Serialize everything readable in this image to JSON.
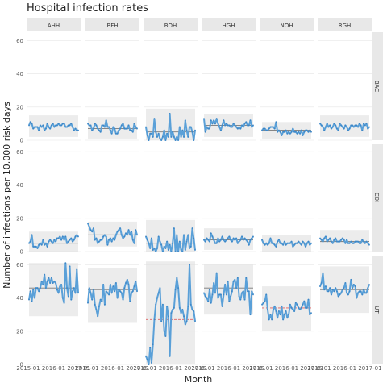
{
  "chart_data": {
    "type": "line",
    "title": "Hospital infection rates",
    "xlabel": "Month",
    "ylabel": "Number of infections per 10,000 risk days",
    "ylim": [
      0,
      65
    ],
    "yticks": [
      0,
      20,
      40,
      60
    ],
    "grid": true,
    "legend": "none",
    "hospitals": [
      "AHH",
      "BFH",
      "BOH",
      "HGH",
      "NOH",
      "RGH"
    ],
    "infections": [
      "BAC",
      "CDI",
      "UTI"
    ],
    "xtick_labels": {
      "AHH": "2015-01 2016-01 2017-01",
      "BFH": "2015-01 2016-01 2017-01",
      "BOH": "2015-01 2016-01 2017-01",
      "HGH": "2015-01 2016-01 2017-01",
      "NOH": "2015-01 2016-01 2017-01",
      "RGH": "2015-01 2016-01 2017-01"
    },
    "panels": {
      "BAC": {
        "AHH": {
          "mean": 8,
          "lcl": 2,
          "ucl": 15,
          "values": [
            9,
            11,
            10,
            7,
            8,
            8,
            8,
            6,
            9,
            8,
            9,
            6,
            7,
            10,
            8,
            7,
            9,
            10,
            8,
            9,
            9,
            10,
            9,
            9,
            10,
            10,
            8,
            8,
            9,
            9,
            10,
            8,
            6,
            7,
            6,
            6
          ]
        },
        "BFH": {
          "mean": 7,
          "lcl": 1,
          "ucl": 14,
          "values": [
            10,
            9,
            9,
            6,
            7,
            10,
            9,
            7,
            6,
            5,
            9,
            9,
            8,
            12,
            8,
            8,
            6,
            4,
            8,
            7,
            4,
            4,
            6,
            7,
            9,
            10,
            7,
            7,
            7,
            9,
            6,
            6,
            5,
            10,
            8,
            7
          ]
        },
        "BOH": {
          "mean": 5,
          "lcl": 0,
          "ucl": 19,
          "values": [
            8,
            3,
            0,
            4,
            4,
            2,
            13,
            5,
            2,
            4,
            1,
            0,
            2,
            6,
            0,
            4,
            2,
            16,
            2,
            5,
            2,
            0,
            2,
            0,
            8,
            2,
            6,
            2,
            12,
            6,
            2,
            8,
            8,
            5,
            0,
            6
          ]
        },
        "HGH": {
          "mean": 9,
          "lcl": 2,
          "ucl": 16,
          "values": [
            13,
            5,
            8,
            7,
            7,
            12,
            10,
            12,
            10,
            13,
            10,
            8,
            6,
            9,
            12,
            9,
            10,
            9,
            9,
            8,
            8,
            10,
            9,
            8,
            7,
            8,
            7,
            9,
            8,
            10,
            11,
            9,
            9,
            12,
            8,
            9
          ]
        },
        "NOH": {
          "mean": 6,
          "lcl": 1,
          "ucl": 11,
          "values": [
            6,
            7,
            7,
            6,
            6,
            7,
            8,
            8,
            8,
            7,
            11,
            5,
            6,
            5,
            3,
            5,
            5,
            6,
            4,
            5,
            4,
            5,
            7,
            5,
            5,
            4,
            5,
            4,
            6,
            3,
            5,
            6,
            6,
            5,
            6,
            5
          ]
        },
        "RGH": {
          "mean": 8,
          "lcl": 2,
          "ucl": 15,
          "values": [
            10,
            9,
            8,
            6,
            8,
            10,
            8,
            9,
            7,
            8,
            10,
            9,
            7,
            6,
            10,
            9,
            8,
            7,
            9,
            8,
            6,
            7,
            9,
            9,
            8,
            9,
            9,
            8,
            10,
            9,
            6,
            10,
            9,
            10,
            7,
            8
          ]
        }
      },
      "CDI": {
        "AHH": {
          "mean": 5,
          "lcl": 0,
          "ucl": 12,
          "values": [
            5,
            6,
            10,
            3,
            3,
            3,
            2,
            4,
            5,
            4,
            7,
            4,
            5,
            3,
            6,
            7,
            6,
            5,
            7,
            6,
            8,
            8,
            9,
            7,
            9,
            7,
            9,
            5,
            6,
            7,
            8,
            6,
            7,
            9,
            10,
            9
          ]
        },
        "BFH": {
          "mean": 10,
          "lcl": 3,
          "ucl": 18,
          "values": [
            17,
            15,
            13,
            12,
            14,
            7,
            8,
            5,
            6,
            7,
            7,
            9,
            10,
            9,
            4,
            7,
            8,
            6,
            8,
            7,
            10,
            12,
            13,
            14,
            10,
            8,
            9,
            11,
            10,
            13,
            10,
            12,
            7,
            5,
            13,
            10
          ]
        },
        "BOH": {
          "mean": 5,
          "lcl": 0,
          "ucl": 19,
          "values": [
            9,
            7,
            5,
            2,
            8,
            1,
            2,
            0,
            2,
            9,
            6,
            4,
            0,
            3,
            2,
            6,
            1,
            4,
            0,
            5,
            14,
            0,
            10,
            0,
            6,
            1,
            0,
            10,
            1,
            6,
            10,
            2,
            3,
            14,
            8,
            1
          ]
        },
        "HGH": {
          "mean": 7,
          "lcl": 1,
          "ucl": 14,
          "values": [
            7,
            6,
            8,
            7,
            6,
            11,
            9,
            7,
            5,
            5,
            8,
            6,
            7,
            9,
            7,
            6,
            7,
            8,
            9,
            7,
            6,
            8,
            7,
            8,
            5,
            6,
            7,
            9,
            7,
            8,
            7,
            6,
            4,
            7,
            8,
            9
          ]
        },
        "NOH": {
          "mean": 5,
          "lcl": 0,
          "ucl": 10,
          "values": [
            7,
            5,
            4,
            5,
            4,
            5,
            8,
            5,
            5,
            4,
            3,
            6,
            7,
            5,
            5,
            4,
            6,
            4,
            5,
            5,
            5,
            6,
            3,
            4,
            5,
            5,
            6,
            5,
            4,
            6,
            5,
            3,
            5,
            6,
            4,
            5
          ]
        },
        "RGH": {
          "mean": 6,
          "lcl": 1,
          "ucl": 13,
          "values": [
            8,
            7,
            6,
            8,
            9,
            6,
            7,
            8,
            6,
            5,
            7,
            8,
            6,
            6,
            6,
            7,
            8,
            7,
            5,
            7,
            5,
            5,
            6,
            5,
            5,
            6,
            6,
            6,
            5,
            5,
            7,
            6,
            5,
            6,
            5,
            4
          ]
        }
      },
      "UTI": {
        "AHH": {
          "mean": 46,
          "lcl": 29,
          "ucl": 61,
          "values": [
            39,
            44,
            38,
            45,
            40,
            46,
            46,
            44,
            46,
            50,
            48,
            54,
            46,
            50,
            52,
            49,
            52,
            49,
            50,
            49,
            45,
            43,
            47,
            48,
            40,
            37,
            61,
            46,
            41,
            59,
            39,
            44,
            46,
            43,
            57,
            43
          ]
        },
        "BFH": {
          "mean": 45,
          "lcl": 25,
          "ucl": 58,
          "values": [
            37,
            46,
            43,
            39,
            45,
            36,
            33,
            29,
            35,
            39,
            38,
            48,
            36,
            44,
            43,
            42,
            48,
            43,
            47,
            44,
            49,
            40,
            45,
            44,
            43,
            39,
            46,
            49,
            51,
            48,
            38,
            43,
            44,
            47,
            50,
            44
          ]
        },
        "BOH": {
          "mean": 27,
          "lcl": 0,
          "ucl": 62,
          "values": [
            5,
            3,
            0,
            10,
            1,
            12,
            27,
            36,
            40,
            43,
            46,
            26,
            36,
            20,
            17,
            35,
            29,
            5,
            31,
            33,
            34,
            45,
            52,
            46,
            34,
            31,
            33,
            29,
            24,
            26,
            35,
            60,
            36,
            33,
            32,
            26
          ]
        },
        "HGH": {
          "mean": 46,
          "lcl": 30,
          "ucl": 60,
          "values": [
            43,
            41,
            40,
            38,
            45,
            37,
            42,
            49,
            43,
            55,
            40,
            42,
            42,
            35,
            42,
            48,
            42,
            50,
            38,
            41,
            44,
            50,
            51,
            46,
            52,
            41,
            39,
            43,
            44,
            39,
            52,
            44,
            44,
            30,
            44,
            42
          ]
        },
        "NOH": {
          "mean": 34,
          "lcl": 20,
          "ucl": 47,
          "values": [
            36,
            37,
            38,
            42,
            33,
            27,
            30,
            27,
            33,
            35,
            32,
            28,
            32,
            30,
            35,
            27,
            30,
            32,
            28,
            30,
            36,
            34,
            33,
            32,
            37,
            36,
            34,
            33,
            34,
            36,
            38,
            34,
            34,
            39,
            30,
            31
          ]
        },
        "RGH": {
          "mean": 45,
          "lcl": 31,
          "ucl": 59,
          "values": [
            47,
            49,
            55,
            45,
            47,
            44,
            44,
            46,
            42,
            45,
            44,
            46,
            44,
            41,
            42,
            43,
            45,
            46,
            49,
            43,
            42,
            44,
            51,
            46,
            48,
            47,
            40,
            43,
            44,
            44,
            42,
            45,
            43,
            43,
            46,
            48
          ]
        }
      }
    }
  }
}
